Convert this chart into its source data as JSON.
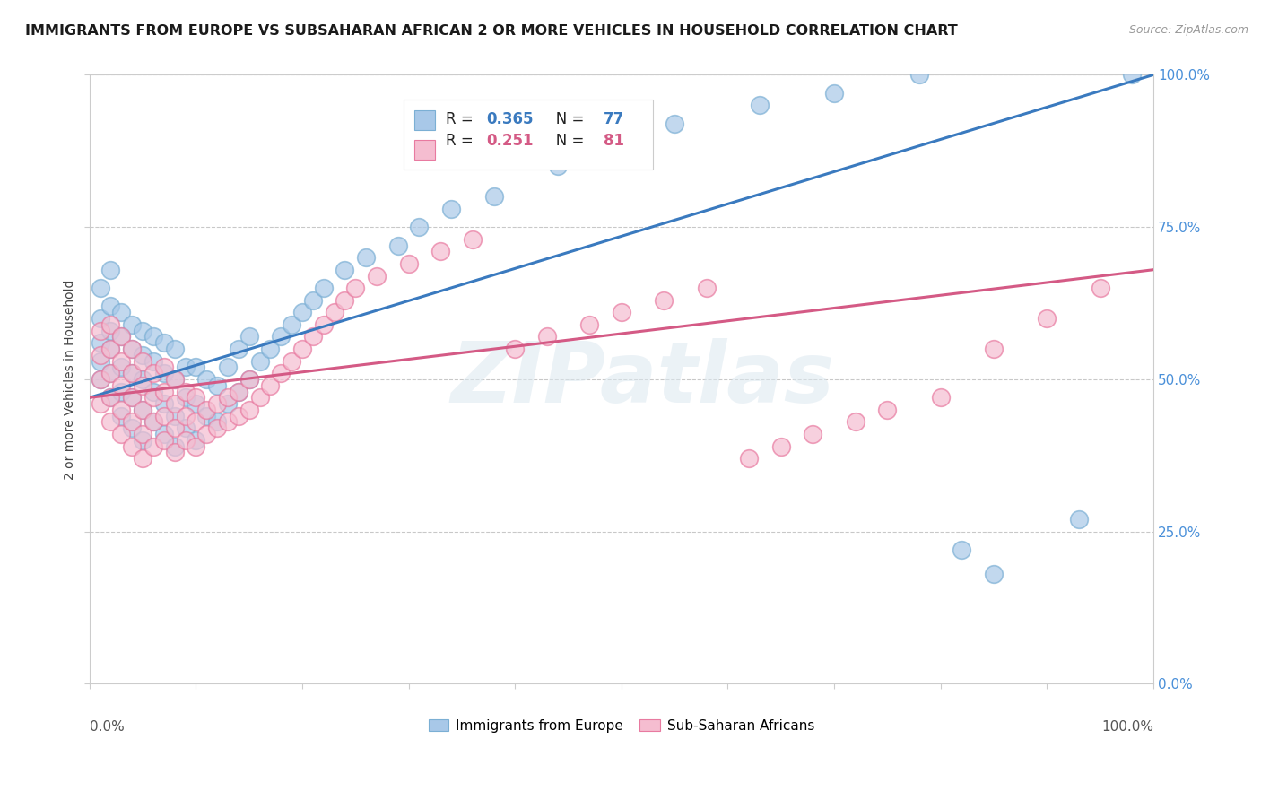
{
  "title": "IMMIGRANTS FROM EUROPE VS SUBSAHARAN AFRICAN 2 OR MORE VEHICLES IN HOUSEHOLD CORRELATION CHART",
  "source": "Source: ZipAtlas.com",
  "ylabel": "2 or more Vehicles in Household",
  "ytick_values": [
    0.0,
    0.25,
    0.5,
    0.75,
    1.0
  ],
  "xlim": [
    0.0,
    1.0
  ],
  "ylim": [
    0.0,
    1.0
  ],
  "watermark": "ZIPatlas",
  "blue_line": {
    "x0": 0.0,
    "y0": 0.47,
    "x1": 1.0,
    "y1": 1.0
  },
  "pink_line": {
    "x0": 0.0,
    "y0": 0.47,
    "x1": 1.0,
    "y1": 0.68
  },
  "series": [
    {
      "name": "Immigrants from Europe",
      "R": 0.365,
      "N": 77,
      "color": "#a8c8e8",
      "edge_color": "#7bafd4",
      "line_color": "#3a7abf",
      "x": [
        0.01,
        0.01,
        0.01,
        0.01,
        0.01,
        0.02,
        0.02,
        0.02,
        0.02,
        0.02,
        0.02,
        0.03,
        0.03,
        0.03,
        0.03,
        0.03,
        0.04,
        0.04,
        0.04,
        0.04,
        0.04,
        0.05,
        0.05,
        0.05,
        0.05,
        0.05,
        0.06,
        0.06,
        0.06,
        0.06,
        0.07,
        0.07,
        0.07,
        0.07,
        0.08,
        0.08,
        0.08,
        0.08,
        0.09,
        0.09,
        0.09,
        0.1,
        0.1,
        0.1,
        0.11,
        0.11,
        0.12,
        0.12,
        0.13,
        0.13,
        0.14,
        0.14,
        0.15,
        0.15,
        0.16,
        0.17,
        0.18,
        0.19,
        0.2,
        0.21,
        0.22,
        0.24,
        0.26,
        0.29,
        0.31,
        0.34,
        0.38,
        0.44,
        0.5,
        0.55,
        0.63,
        0.7,
        0.78,
        0.82,
        0.85,
        0.93,
        0.98
      ],
      "y": [
        0.5,
        0.53,
        0.56,
        0.6,
        0.65,
        0.47,
        0.51,
        0.55,
        0.58,
        0.62,
        0.68,
        0.44,
        0.48,
        0.52,
        0.57,
        0.61,
        0.42,
        0.47,
        0.51,
        0.55,
        0.59,
        0.4,
        0.45,
        0.5,
        0.54,
        0.58,
        0.43,
        0.48,
        0.53,
        0.57,
        0.41,
        0.46,
        0.51,
        0.56,
        0.39,
        0.44,
        0.5,
        0.55,
        0.42,
        0.47,
        0.52,
        0.4,
        0.46,
        0.52,
        0.44,
        0.5,
        0.43,
        0.49,
        0.46,
        0.52,
        0.48,
        0.55,
        0.5,
        0.57,
        0.53,
        0.55,
        0.57,
        0.59,
        0.61,
        0.63,
        0.65,
        0.68,
        0.7,
        0.72,
        0.75,
        0.78,
        0.8,
        0.85,
        0.88,
        0.92,
        0.95,
        0.97,
        1.0,
        0.22,
        0.18,
        0.27,
        1.0
      ]
    },
    {
      "name": "Sub-Saharan Africans",
      "R": 0.251,
      "N": 81,
      "color": "#f5bdd0",
      "edge_color": "#e87aa0",
      "line_color": "#d45a85",
      "x": [
        0.01,
        0.01,
        0.01,
        0.01,
        0.02,
        0.02,
        0.02,
        0.02,
        0.02,
        0.03,
        0.03,
        0.03,
        0.03,
        0.03,
        0.04,
        0.04,
        0.04,
        0.04,
        0.04,
        0.05,
        0.05,
        0.05,
        0.05,
        0.05,
        0.06,
        0.06,
        0.06,
        0.06,
        0.07,
        0.07,
        0.07,
        0.07,
        0.08,
        0.08,
        0.08,
        0.08,
        0.09,
        0.09,
        0.09,
        0.1,
        0.1,
        0.1,
        0.11,
        0.11,
        0.12,
        0.12,
        0.13,
        0.13,
        0.14,
        0.14,
        0.15,
        0.15,
        0.16,
        0.17,
        0.18,
        0.19,
        0.2,
        0.21,
        0.22,
        0.23,
        0.24,
        0.25,
        0.27,
        0.3,
        0.33,
        0.36,
        0.4,
        0.43,
        0.47,
        0.5,
        0.54,
        0.58,
        0.62,
        0.65,
        0.68,
        0.72,
        0.75,
        0.8,
        0.85,
        0.9,
        0.95
      ],
      "y": [
        0.46,
        0.5,
        0.54,
        0.58,
        0.43,
        0.47,
        0.51,
        0.55,
        0.59,
        0.41,
        0.45,
        0.49,
        0.53,
        0.57,
        0.39,
        0.43,
        0.47,
        0.51,
        0.55,
        0.37,
        0.41,
        0.45,
        0.49,
        0.53,
        0.39,
        0.43,
        0.47,
        0.51,
        0.4,
        0.44,
        0.48,
        0.52,
        0.38,
        0.42,
        0.46,
        0.5,
        0.4,
        0.44,
        0.48,
        0.39,
        0.43,
        0.47,
        0.41,
        0.45,
        0.42,
        0.46,
        0.43,
        0.47,
        0.44,
        0.48,
        0.45,
        0.5,
        0.47,
        0.49,
        0.51,
        0.53,
        0.55,
        0.57,
        0.59,
        0.61,
        0.63,
        0.65,
        0.67,
        0.69,
        0.71,
        0.73,
        0.55,
        0.57,
        0.59,
        0.61,
        0.63,
        0.65,
        0.37,
        0.39,
        0.41,
        0.43,
        0.45,
        0.47,
        0.55,
        0.6,
        0.65
      ]
    }
  ]
}
